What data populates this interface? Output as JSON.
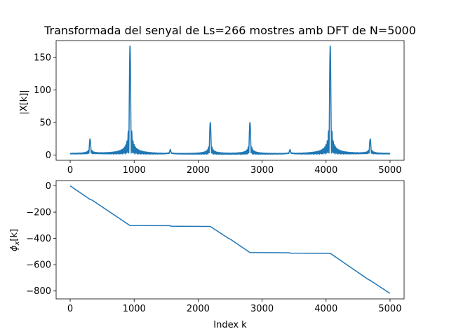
{
  "chart_data": [
    {
      "type": "line",
      "title": "Transformada del senyal de Ls=266 mostres amb DFT de N=5000",
      "xlabel": "",
      "ylabel": "|X[k]|",
      "xlim": [
        -220,
        5220
      ],
      "ylim": [
        -8,
        176
      ],
      "xticks": [
        0,
        1000,
        2000,
        3000,
        4000,
        5000
      ],
      "yticks": [
        0,
        50,
        100,
        150
      ],
      "x_tick_labels": [
        "0",
        "1000",
        "2000",
        "3000",
        "4000",
        "5000"
      ],
      "y_tick_labels": [
        "0",
        "50",
        "100",
        "150"
      ],
      "color": "#1f77b4",
      "peaks": [
        {
          "k": 310,
          "value": 23
        },
        {
          "k": 935,
          "value": 167
        },
        {
          "k": 1565,
          "value": 6
        },
        {
          "k": 2190,
          "value": 49
        },
        {
          "k": 2810,
          "value": 49
        },
        {
          "k": 3435,
          "value": 6
        },
        {
          "k": 4065,
          "value": 167
        },
        {
          "k": 4690,
          "value": 23
        }
      ]
    },
    {
      "type": "line",
      "title": "",
      "xlabel": "Index k",
      "ylabel": "φ_x[k]",
      "xlim": [
        -220,
        5220
      ],
      "ylim": [
        -860,
        40
      ],
      "xticks": [
        0,
        1000,
        2000,
        3000,
        4000,
        5000
      ],
      "yticks": [
        0,
        -200,
        -400,
        -600,
        -800
      ],
      "x_tick_labels": [
        "0",
        "1000",
        "2000",
        "3000",
        "4000",
        "5000"
      ],
      "y_tick_labels": [
        "0",
        "−200",
        "−400",
        "−600",
        "−800"
      ],
      "color": "#1f77b4",
      "x": [
        0,
        300,
        340,
        935,
        1565,
        1570,
        2190,
        2470,
        2510,
        2810,
        3435,
        3440,
        4065,
        4660,
        4700,
        5000
      ],
      "y": [
        0,
        -100,
        -108,
        -302,
        -303,
        -307,
        -309,
        -398,
        -408,
        -507,
        -509,
        -512,
        -513,
        -712,
        -722,
        -818
      ]
    }
  ]
}
